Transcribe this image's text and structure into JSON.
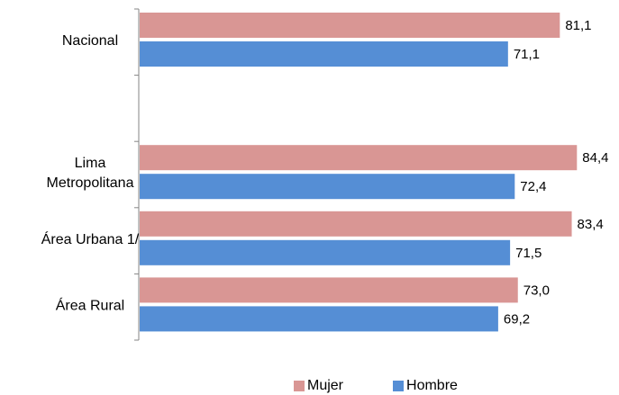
{
  "chart_data": {
    "type": "bar",
    "orientation": "horizontal",
    "categories": [
      "Nacional",
      "",
      "Lima Metropolitana",
      "Área Urbana 1/",
      "Área Rural"
    ],
    "category_lines": [
      [
        "Nacional"
      ],
      [],
      [
        "Lima",
        "Metropolitana"
      ],
      [
        "Área Urbana 1/"
      ],
      [
        "Área Rural"
      ]
    ],
    "series": [
      {
        "name": "Mujer",
        "color": "#d99694",
        "values": [
          81.1,
          null,
          84.4,
          83.4,
          73.0
        ],
        "labels": [
          "81,1",
          "",
          "84,4",
          "83,4",
          "73,0"
        ]
      },
      {
        "name": "Hombre",
        "color": "#558ed5",
        "values": [
          71.1,
          null,
          72.4,
          71.5,
          69.2
        ],
        "labels": [
          "71,1",
          "",
          "72,4",
          "71,5",
          "69,2"
        ]
      }
    ],
    "xlim": [
      0,
      100
    ],
    "grid": false,
    "legend_position": "bottom"
  },
  "legend": {
    "mujer": "Mujer",
    "hombre": "Hombre"
  }
}
